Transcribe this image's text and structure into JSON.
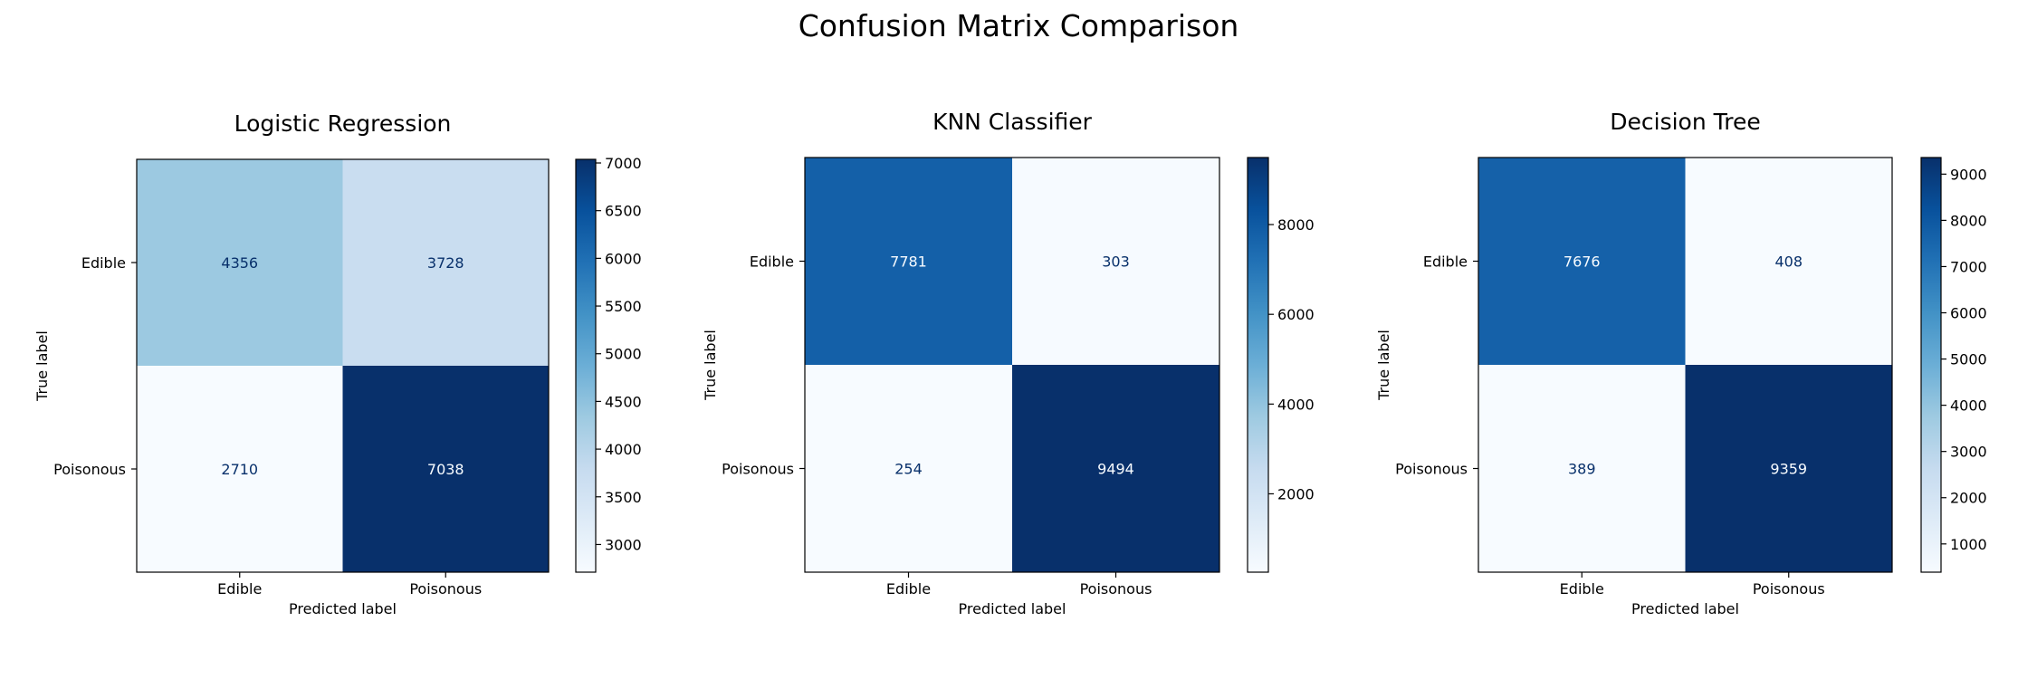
{
  "figure": {
    "title": "Confusion Matrix Comparison"
  },
  "colormap": {
    "name": "Blues",
    "light": "#f7fbff",
    "dark": "#08306b"
  },
  "chart_data": [
    {
      "type": "heatmap",
      "title": "Logistic Regression",
      "xlabel": "Predicted label",
      "ylabel": "True label",
      "x_categories": [
        "Edible",
        "Poisonous"
      ],
      "y_categories": [
        "Edible",
        "Poisonous"
      ],
      "matrix": [
        [
          4356,
          3728
        ],
        [
          2710,
          7038
        ]
      ],
      "colorbar": {
        "vmin": 2710,
        "vmax": 7038,
        "ticks": [
          3000,
          3500,
          4000,
          4500,
          5000,
          5500,
          6000,
          6500,
          7000
        ]
      }
    },
    {
      "type": "heatmap",
      "title": "KNN Classifier",
      "xlabel": "Predicted label",
      "ylabel": "True label",
      "x_categories": [
        "Edible",
        "Poisonous"
      ],
      "y_categories": [
        "Edible",
        "Poisonous"
      ],
      "matrix": [
        [
          7781,
          303
        ],
        [
          254,
          9494
        ]
      ],
      "colorbar": {
        "vmin": 254,
        "vmax": 9494,
        "ticks": [
          2000,
          4000,
          6000,
          8000
        ]
      }
    },
    {
      "type": "heatmap",
      "title": "Decision Tree",
      "xlabel": "Predicted label",
      "ylabel": "True label",
      "x_categories": [
        "Edible",
        "Poisonous"
      ],
      "y_categories": [
        "Edible",
        "Poisonous"
      ],
      "matrix": [
        [
          7676,
          408
        ],
        [
          389,
          9359
        ]
      ],
      "colorbar": {
        "vmin": 389,
        "vmax": 9359,
        "ticks": [
          1000,
          2000,
          3000,
          4000,
          5000,
          6000,
          7000,
          8000,
          9000
        ]
      }
    }
  ]
}
